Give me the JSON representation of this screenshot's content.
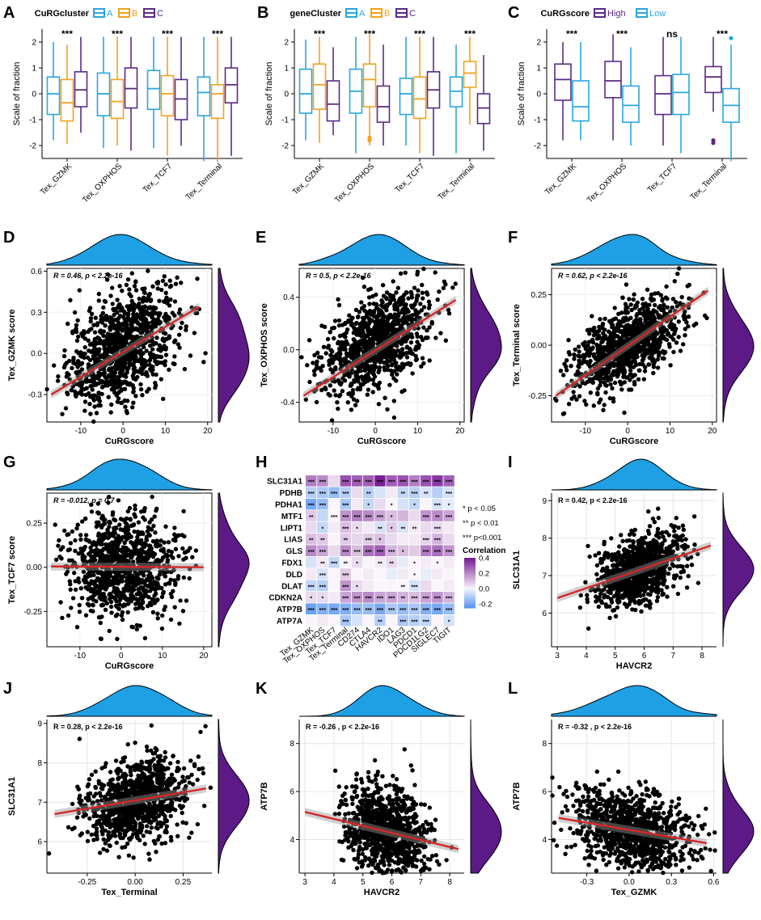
{
  "colors": {
    "A": "#2aa6e0",
    "B": "#f5a11c",
    "C": "#5b2a86",
    "High": "#5b2a86",
    "Low": "#2aa6e0",
    "blue_density": "#1fa0e4",
    "purple_density": "#5b1a86",
    "fit_line": "#d62728",
    "point": "#000000"
  },
  "panel_letters": {
    "A": "A",
    "B": "B",
    "C": "C",
    "D": "D",
    "E": "E",
    "F": "F",
    "G": "G",
    "H": "H",
    "I": "I",
    "J": "J",
    "K": "K",
    "L": "L"
  },
  "chart_data": [
    {
      "panel": "A",
      "type": "box",
      "legend_title": "CuRGcluster",
      "groups": [
        "A",
        "B",
        "C"
      ],
      "categories": [
        "Tex_GZMK",
        "Tex_OXPHOS",
        "Tex_TCF7",
        "Tex_Terminal"
      ],
      "ylabel": "Scale of fraction",
      "ylim": [
        -2.5,
        2.5
      ],
      "yticks": [
        -2,
        -1,
        0,
        1,
        2
      ],
      "significance": [
        "***",
        "***",
        "***",
        "***"
      ],
      "boxes": [
        [
          {
            "min": -1.8,
            "q1": -0.8,
            "med": 0.0,
            "q3": 0.65,
            "max": 2.0
          },
          {
            "min": -1.95,
            "q1": -1.05,
            "med": -0.35,
            "q3": 0.55,
            "max": 1.9
          },
          {
            "min": -1.5,
            "q1": -0.5,
            "med": 0.15,
            "q3": 0.85,
            "max": 2.2
          }
        ],
        [
          {
            "min": -2.1,
            "q1": -0.85,
            "med": 0.0,
            "q3": 0.8,
            "max": 2.2
          },
          {
            "min": -2.0,
            "q1": -0.95,
            "med": -0.3,
            "q3": 0.55,
            "max": 2.2
          },
          {
            "min": -2.2,
            "q1": -0.55,
            "med": 0.2,
            "q3": 1.0,
            "max": 2.2
          }
        ],
        [
          {
            "min": -2.1,
            "q1": -0.6,
            "med": 0.2,
            "q3": 0.9,
            "max": 2.2
          },
          {
            "min": -2.4,
            "q1": -0.85,
            "med": 0.0,
            "q3": 0.7,
            "max": 2.2
          },
          {
            "min": -2.0,
            "q1": -1.0,
            "med": -0.2,
            "q3": 0.55,
            "max": 2.2
          }
        ],
        [
          {
            "min": -2.6,
            "q1": -0.85,
            "med": 0.05,
            "q3": 0.65,
            "max": 2.2
          },
          {
            "min": -2.6,
            "q1": -0.95,
            "med": 0.0,
            "q3": 0.35,
            "max": 2.2
          },
          {
            "min": -2.4,
            "q1": -0.35,
            "med": 0.35,
            "q3": 1.0,
            "max": 2.2
          }
        ]
      ]
    },
    {
      "panel": "B",
      "type": "box",
      "legend_title": "geneCluster",
      "groups": [
        "A",
        "B",
        "C"
      ],
      "categories": [
        "Tex_GZMK",
        "Tex_OXPHOS",
        "Tex_TCF7",
        "Tex_Terminal"
      ],
      "ylabel": "Scale of fraction",
      "ylim": [
        -2.5,
        2.5
      ],
      "yticks": [
        -2,
        -1,
        0,
        1,
        2
      ],
      "significance": [
        "***",
        "***",
        "***",
        "***"
      ],
      "boxes": [
        [
          {
            "min": -1.8,
            "q1": -0.75,
            "med": 0.0,
            "q3": 0.95,
            "max": 2.1
          },
          {
            "min": -1.9,
            "q1": -0.6,
            "med": 0.35,
            "q3": 1.15,
            "max": 2.2
          },
          {
            "min": -1.6,
            "q1": -1.05,
            "med": -0.4,
            "q3": 0.5,
            "max": 1.8
          }
        ],
        [
          {
            "min": -2.3,
            "q1": -0.75,
            "med": 0.1,
            "q3": 0.95,
            "max": 2.2
          },
          {
            "min": -2.0,
            "q1": -0.5,
            "med": 0.55,
            "q3": 1.15,
            "max": 2.3
          },
          {
            "min": -2.0,
            "q1": -1.1,
            "med": -0.5,
            "q3": 0.3,
            "max": 1.9
          }
        ],
        [
          {
            "min": -2.0,
            "q1": -0.8,
            "med": 0.0,
            "q3": 0.6,
            "max": 2.2
          },
          {
            "min": -2.3,
            "q1": -0.95,
            "med": -0.2,
            "q3": 0.65,
            "max": 2.2
          },
          {
            "min": -2.4,
            "q1": -0.55,
            "med": 0.15,
            "q3": 0.85,
            "max": 2.2
          }
        ],
        [
          {
            "min": -2.3,
            "q1": -0.5,
            "med": 0.1,
            "q3": 0.65,
            "max": 1.9
          },
          {
            "min": -1.2,
            "q1": 0.25,
            "med": 0.8,
            "q3": 1.25,
            "max": 2.2
          },
          {
            "min": -2.2,
            "q1": -1.15,
            "med": -0.55,
            "q3": 0.0,
            "max": 1.5
          }
        ]
      ],
      "outliers": [
        {
          "category": 1,
          "group": 1,
          "values": [
            -1.7,
            -1.8
          ]
        }
      ]
    },
    {
      "panel": "C",
      "type": "box",
      "legend_title": "CuRGscore",
      "groups": [
        "High",
        "Low"
      ],
      "categories": [
        "Tex_GZMK",
        "Tex_OXPHOS",
        "Tex_TCF7",
        "Tex_Terminal"
      ],
      "ylabel": "Scale of fraction",
      "ylim": [
        -2.5,
        2.5
      ],
      "yticks": [
        -2,
        -1,
        0,
        1,
        2
      ],
      "significance": [
        "***",
        "***",
        "ns",
        "***"
      ],
      "boxes": [
        [
          {
            "min": -1.8,
            "q1": -0.25,
            "med": 0.55,
            "q3": 1.15,
            "max": 2.0
          },
          {
            "min": -1.8,
            "q1": -1.05,
            "med": -0.5,
            "q3": 0.5,
            "max": 2.0
          }
        ],
        [
          {
            "min": -1.8,
            "q1": -0.15,
            "med": 0.5,
            "q3": 1.25,
            "max": 2.3
          },
          {
            "min": -2.0,
            "q1": -1.1,
            "med": -0.45,
            "q3": 0.3,
            "max": 1.8
          }
        ],
        [
          {
            "min": -2.0,
            "q1": -0.8,
            "med": 0.0,
            "q3": 0.7,
            "max": 2.2
          },
          {
            "min": -2.3,
            "q1": -0.8,
            "med": 0.05,
            "q3": 0.75,
            "max": 2.2
          }
        ],
        [
          {
            "min": -0.7,
            "q1": 0.05,
            "med": 0.65,
            "q3": 1.05,
            "max": 2.2
          },
          {
            "min": -2.6,
            "q1": -1.1,
            "med": -0.45,
            "q3": 0.2,
            "max": 1.9
          }
        ]
      ],
      "outliers": [
        {
          "category": 3,
          "group": 0,
          "values": [
            -1.8,
            -1.9
          ]
        },
        {
          "category": 3,
          "group": 1,
          "values": [
            2.15
          ]
        }
      ]
    },
    {
      "panel": "D",
      "type": "scatter",
      "annotation": "R = 0.46, p < 2.2e-16",
      "xlabel": "CuRGscore",
      "ylabel": "Tex_GZMK score",
      "xlim": [
        -18,
        21
      ],
      "ylim": [
        -0.5,
        0.62
      ],
      "xticks": [
        -10,
        0,
        10,
        20
      ],
      "yticks": [
        -0.3,
        0.0,
        0.3,
        0.6
      ],
      "fit": {
        "x": [
          -17,
          18
        ],
        "y": [
          -0.3,
          0.34
        ]
      },
      "n": 1000,
      "center": [
        0,
        0.05
      ],
      "spread": [
        6.5,
        0.22
      ],
      "r": 0.46
    },
    {
      "panel": "E",
      "type": "scatter",
      "annotation": "R = 0.5, p < 2.2e-16",
      "xlabel": "CuRGscore",
      "ylabel": "Tex_OXPHOS score",
      "xlim": [
        -18,
        21
      ],
      "ylim": [
        -0.55,
        0.62
      ],
      "xticks": [
        -10,
        0,
        10,
        20
      ],
      "yticks": [
        -0.4,
        0.0,
        0.4
      ],
      "fit": {
        "x": [
          -17,
          19
        ],
        "y": [
          -0.35,
          0.38
        ]
      },
      "n": 1000,
      "center": [
        0,
        0.05
      ],
      "spread": [
        6.5,
        0.2
      ],
      "r": 0.5
    },
    {
      "panel": "F",
      "type": "scatter",
      "annotation": "R = 0.62, p < 2.2e-16",
      "xlabel": "CuRGscore",
      "ylabel": "Tex_Terminal score",
      "xlim": [
        -18,
        21
      ],
      "ylim": [
        -0.38,
        0.38
      ],
      "xticks": [
        -10,
        0,
        10,
        20
      ],
      "yticks": [
        -0.25,
        0.0,
        0.25
      ],
      "fit": {
        "x": [
          -17,
          19
        ],
        "y": [
          -0.25,
          0.27
        ]
      },
      "n": 1000,
      "center": [
        0,
        0.0
      ],
      "spread": [
        6.5,
        0.12
      ],
      "r": 0.62
    },
    {
      "panel": "G",
      "type": "scatter",
      "annotation": "R = -0.012, p = 0.7",
      "xlabel": "CuRGscore",
      "ylabel": "Tex_TCF7 score",
      "xlim": [
        -18,
        22
      ],
      "ylim": [
        -0.45,
        0.42
      ],
      "xticks": [
        -10,
        0,
        10,
        20
      ],
      "yticks": [
        -0.25,
        0.0,
        0.25
      ],
      "fit": {
        "x": [
          -17,
          20
        ],
        "y": [
          0.005,
          0.0
        ]
      },
      "n": 1000,
      "center": [
        0,
        0.0
      ],
      "spread": [
        6.5,
        0.15
      ],
      "r": -0.012
    },
    {
      "panel": "H",
      "type": "heatmap",
      "rows": [
        "SLC31A1",
        "PDHB",
        "PDHA1",
        "MTF1",
        "LIPT1",
        "LIAS",
        "GLS",
        "FDX1",
        "DLD",
        "DLAT",
        "CDKN2A",
        "ATP7B",
        "ATP7A"
      ],
      "cols": [
        "Tex_GZMK",
        "Tex_OXPHOS",
        "Tex_TCF7",
        "Tex_Terminal",
        "CD274",
        "CTLA4",
        "HAVCR2",
        "IDO1",
        "LAG3",
        "PDCD1",
        "PDCD1LG2",
        "SIGLEC7",
        "TIGIT"
      ],
      "values": [
        [
          0.22,
          0.2,
          0.05,
          0.3,
          0.28,
          0.28,
          0.4,
          0.28,
          0.3,
          0.22,
          0.3,
          0.35,
          0.28
        ],
        [
          -0.1,
          -0.12,
          -0.15,
          -0.1,
          0.05,
          -0.1,
          -0.05,
          0.02,
          -0.08,
          -0.1,
          -0.05,
          -0.1,
          -0.05
        ],
        [
          -0.2,
          -0.15,
          0.0,
          -0.12,
          0.02,
          -0.08,
          0.05,
          0.0,
          -0.05,
          -0.08,
          0.0,
          -0.05,
          -0.02
        ],
        [
          0.08,
          -0.08,
          0.0,
          0.18,
          0.22,
          0.2,
          0.15,
          0.1,
          0.12,
          0.05,
          0.18,
          0.2,
          0.15
        ],
        [
          0.05,
          -0.08,
          0.02,
          0.1,
          0.05,
          0.02,
          -0.05,
          0.08,
          -0.05,
          0.02,
          0.05,
          0.05,
          0.02
        ],
        [
          0.1,
          0.08,
          0.0,
          0.08,
          0.06,
          0.08,
          0.1,
          0.05,
          0.02,
          0.02,
          0.06,
          0.12,
          0.05
        ],
        [
          0.2,
          0.15,
          0.05,
          0.2,
          0.1,
          0.25,
          0.28,
          0.12,
          0.1,
          0.08,
          0.22,
          0.25,
          0.18
        ],
        [
          -0.05,
          0.02,
          -0.08,
          0.0,
          0.05,
          0.0,
          0.02,
          0.05,
          -0.02,
          0.0,
          0.02,
          0.0,
          0.02
        ],
        [
          0.02,
          -0.05,
          0.0,
          0.08,
          0.0,
          0.02,
          0.0,
          -0.02,
          0.02,
          0.0,
          -0.02,
          0.02,
          0.0
        ],
        [
          -0.08,
          -0.1,
          0.0,
          0.18,
          0.05,
          0.02,
          0.0,
          0.0,
          0.0,
          -0.05,
          0.05,
          0.0,
          0.02
        ],
        [
          0.05,
          0.05,
          0.02,
          0.15,
          0.18,
          0.2,
          0.15,
          0.15,
          0.12,
          0.1,
          0.15,
          0.18,
          0.12
        ],
        [
          -0.22,
          -0.18,
          -0.2,
          -0.18,
          -0.15,
          -0.15,
          -0.2,
          -0.12,
          -0.15,
          -0.12,
          -0.18,
          -0.2,
          -0.15
        ],
        [
          0.0,
          0.02,
          0.0,
          -0.12,
          -0.05,
          0.0,
          -0.1,
          0.0,
          -0.12,
          -0.1,
          -0.08,
          0.0,
          -0.05
        ]
      ],
      "stars": [
        [
          "***",
          "***",
          "",
          "***",
          "***",
          "***",
          "***",
          "***",
          "***",
          "***",
          "***",
          "***",
          "***"
        ],
        [
          "***",
          "***",
          "***",
          "***",
          "",
          "**",
          "",
          "",
          "**",
          "***",
          "**",
          "",
          "***"
        ],
        [
          "***",
          "***",
          "",
          "***",
          "",
          "*",
          "",
          "*",
          "",
          "*",
          "",
          "***",
          "*"
        ],
        [
          "**",
          "",
          "***",
          "***",
          "***",
          "***",
          "***",
          "*",
          "",
          "",
          "***",
          "**",
          "***"
        ],
        [
          "",
          "*",
          "",
          "***",
          "*",
          "",
          "**",
          "*",
          "**",
          "**",
          "",
          "***",
          ""
        ],
        [
          "**",
          "**",
          "",
          "**",
          "",
          "***",
          "*",
          "",
          "",
          "",
          "***",
          "***",
          ""
        ],
        [
          "***",
          "***",
          "",
          "***",
          "***",
          "***",
          "***",
          "***",
          "*",
          "",
          "***",
          "***",
          "***"
        ],
        [
          "",
          "**",
          "***",
          "**",
          "*",
          "",
          "**",
          "**",
          "",
          "*",
          "",
          "*",
          ""
        ],
        [
          "",
          "***",
          "",
          "***",
          "",
          "",
          "",
          "",
          "",
          "*",
          "",
          "",
          ""
        ],
        [
          "***",
          "***",
          "",
          "***",
          "*",
          "",
          "",
          "",
          "**",
          "***",
          "",
          "",
          ""
        ],
        [
          "*",
          "*",
          "",
          "***",
          "***",
          "***",
          "***",
          "***",
          "**",
          "***",
          "***",
          "***",
          "***"
        ],
        [
          "***",
          "***",
          "***",
          "***",
          "***",
          "***",
          "***",
          "***",
          "***",
          "***",
          "***",
          "***",
          "***"
        ],
        [
          "",
          "",
          "",
          "***",
          "",
          "",
          "**",
          "",
          "***",
          "***",
          "***",
          "",
          "*"
        ]
      ],
      "legend_title": "Correlation",
      "legend_ticks": [
        "0.4",
        "0.2",
        "0.0",
        "-0.2"
      ],
      "sig_legend": [
        "* p < 0.05",
        "** p < 0.01",
        "*** p<0.001"
      ]
    },
    {
      "panel": "I",
      "type": "scatter",
      "annotation": "R = 0.42, p < 2.2e-16",
      "xlabel": "HAVCR2",
      "ylabel": "SLC31A1",
      "xlim": [
        2.8,
        8.5
      ],
      "ylim": [
        5.1,
        9.2
      ],
      "xticks": [
        3,
        4,
        5,
        6,
        7,
        8
      ],
      "yticks": [
        6,
        7,
        8,
        9
      ],
      "fit": {
        "x": [
          3.0,
          8.3
        ],
        "y": [
          6.4,
          7.8
        ]
      },
      "n": 1000,
      "center": [
        5.8,
        7.15
      ],
      "spread": [
        0.7,
        0.5
      ],
      "r": 0.42
    },
    {
      "panel": "J",
      "type": "scatter",
      "annotation": "R = 0.28, p < 2.2e-16",
      "xlabel": "Tex_Terminal",
      "ylabel": "SLC31A1",
      "xlim": [
        -0.46,
        0.4
      ],
      "ylim": [
        5.2,
        9.1
      ],
      "xticks": [
        -0.25,
        0.0,
        0.25
      ],
      "yticks": [
        6,
        7,
        8,
        9
      ],
      "fit": {
        "x": [
          -0.42,
          0.37
        ],
        "y": [
          6.7,
          7.35
        ]
      },
      "n": 1000,
      "center": [
        0.0,
        7.05
      ],
      "spread": [
        0.13,
        0.55
      ],
      "r": 0.28
    },
    {
      "panel": "K",
      "type": "scatter",
      "annotation": "R = -0.26 , p < 2.2e-16",
      "xlabel": "HAVCR2",
      "ylabel": "ATP7B",
      "xlim": [
        2.8,
        8.5
      ],
      "ylim": [
        2.6,
        9.0
      ],
      "xticks": [
        3,
        4,
        5,
        6,
        7,
        8
      ],
      "yticks": [
        4,
        6,
        8
      ],
      "fit": {
        "x": [
          3.0,
          8.3
        ],
        "y": [
          5.15,
          3.6
        ]
      },
      "n": 1000,
      "center": [
        5.8,
        4.35
      ],
      "spread": [
        0.7,
        0.95
      ],
      "r": -0.26
    },
    {
      "panel": "L",
      "type": "scatter",
      "annotation": "R = -0.32 , p < 2.2e-16",
      "xlabel": "Tex_GZMK",
      "ylabel": "ATP7B",
      "xlim": [
        -0.55,
        0.62
      ],
      "ylim": [
        2.6,
        9.0
      ],
      "xticks": [
        -0.3,
        0.0,
        0.3,
        0.6
      ],
      "yticks": [
        4,
        6,
        8
      ],
      "fit": {
        "x": [
          -0.5,
          0.55
        ],
        "y": [
          4.9,
          3.85
        ]
      },
      "n": 1000,
      "center": [
        0.02,
        4.4
      ],
      "spread": [
        0.22,
        0.9
      ],
      "r": -0.32
    }
  ]
}
